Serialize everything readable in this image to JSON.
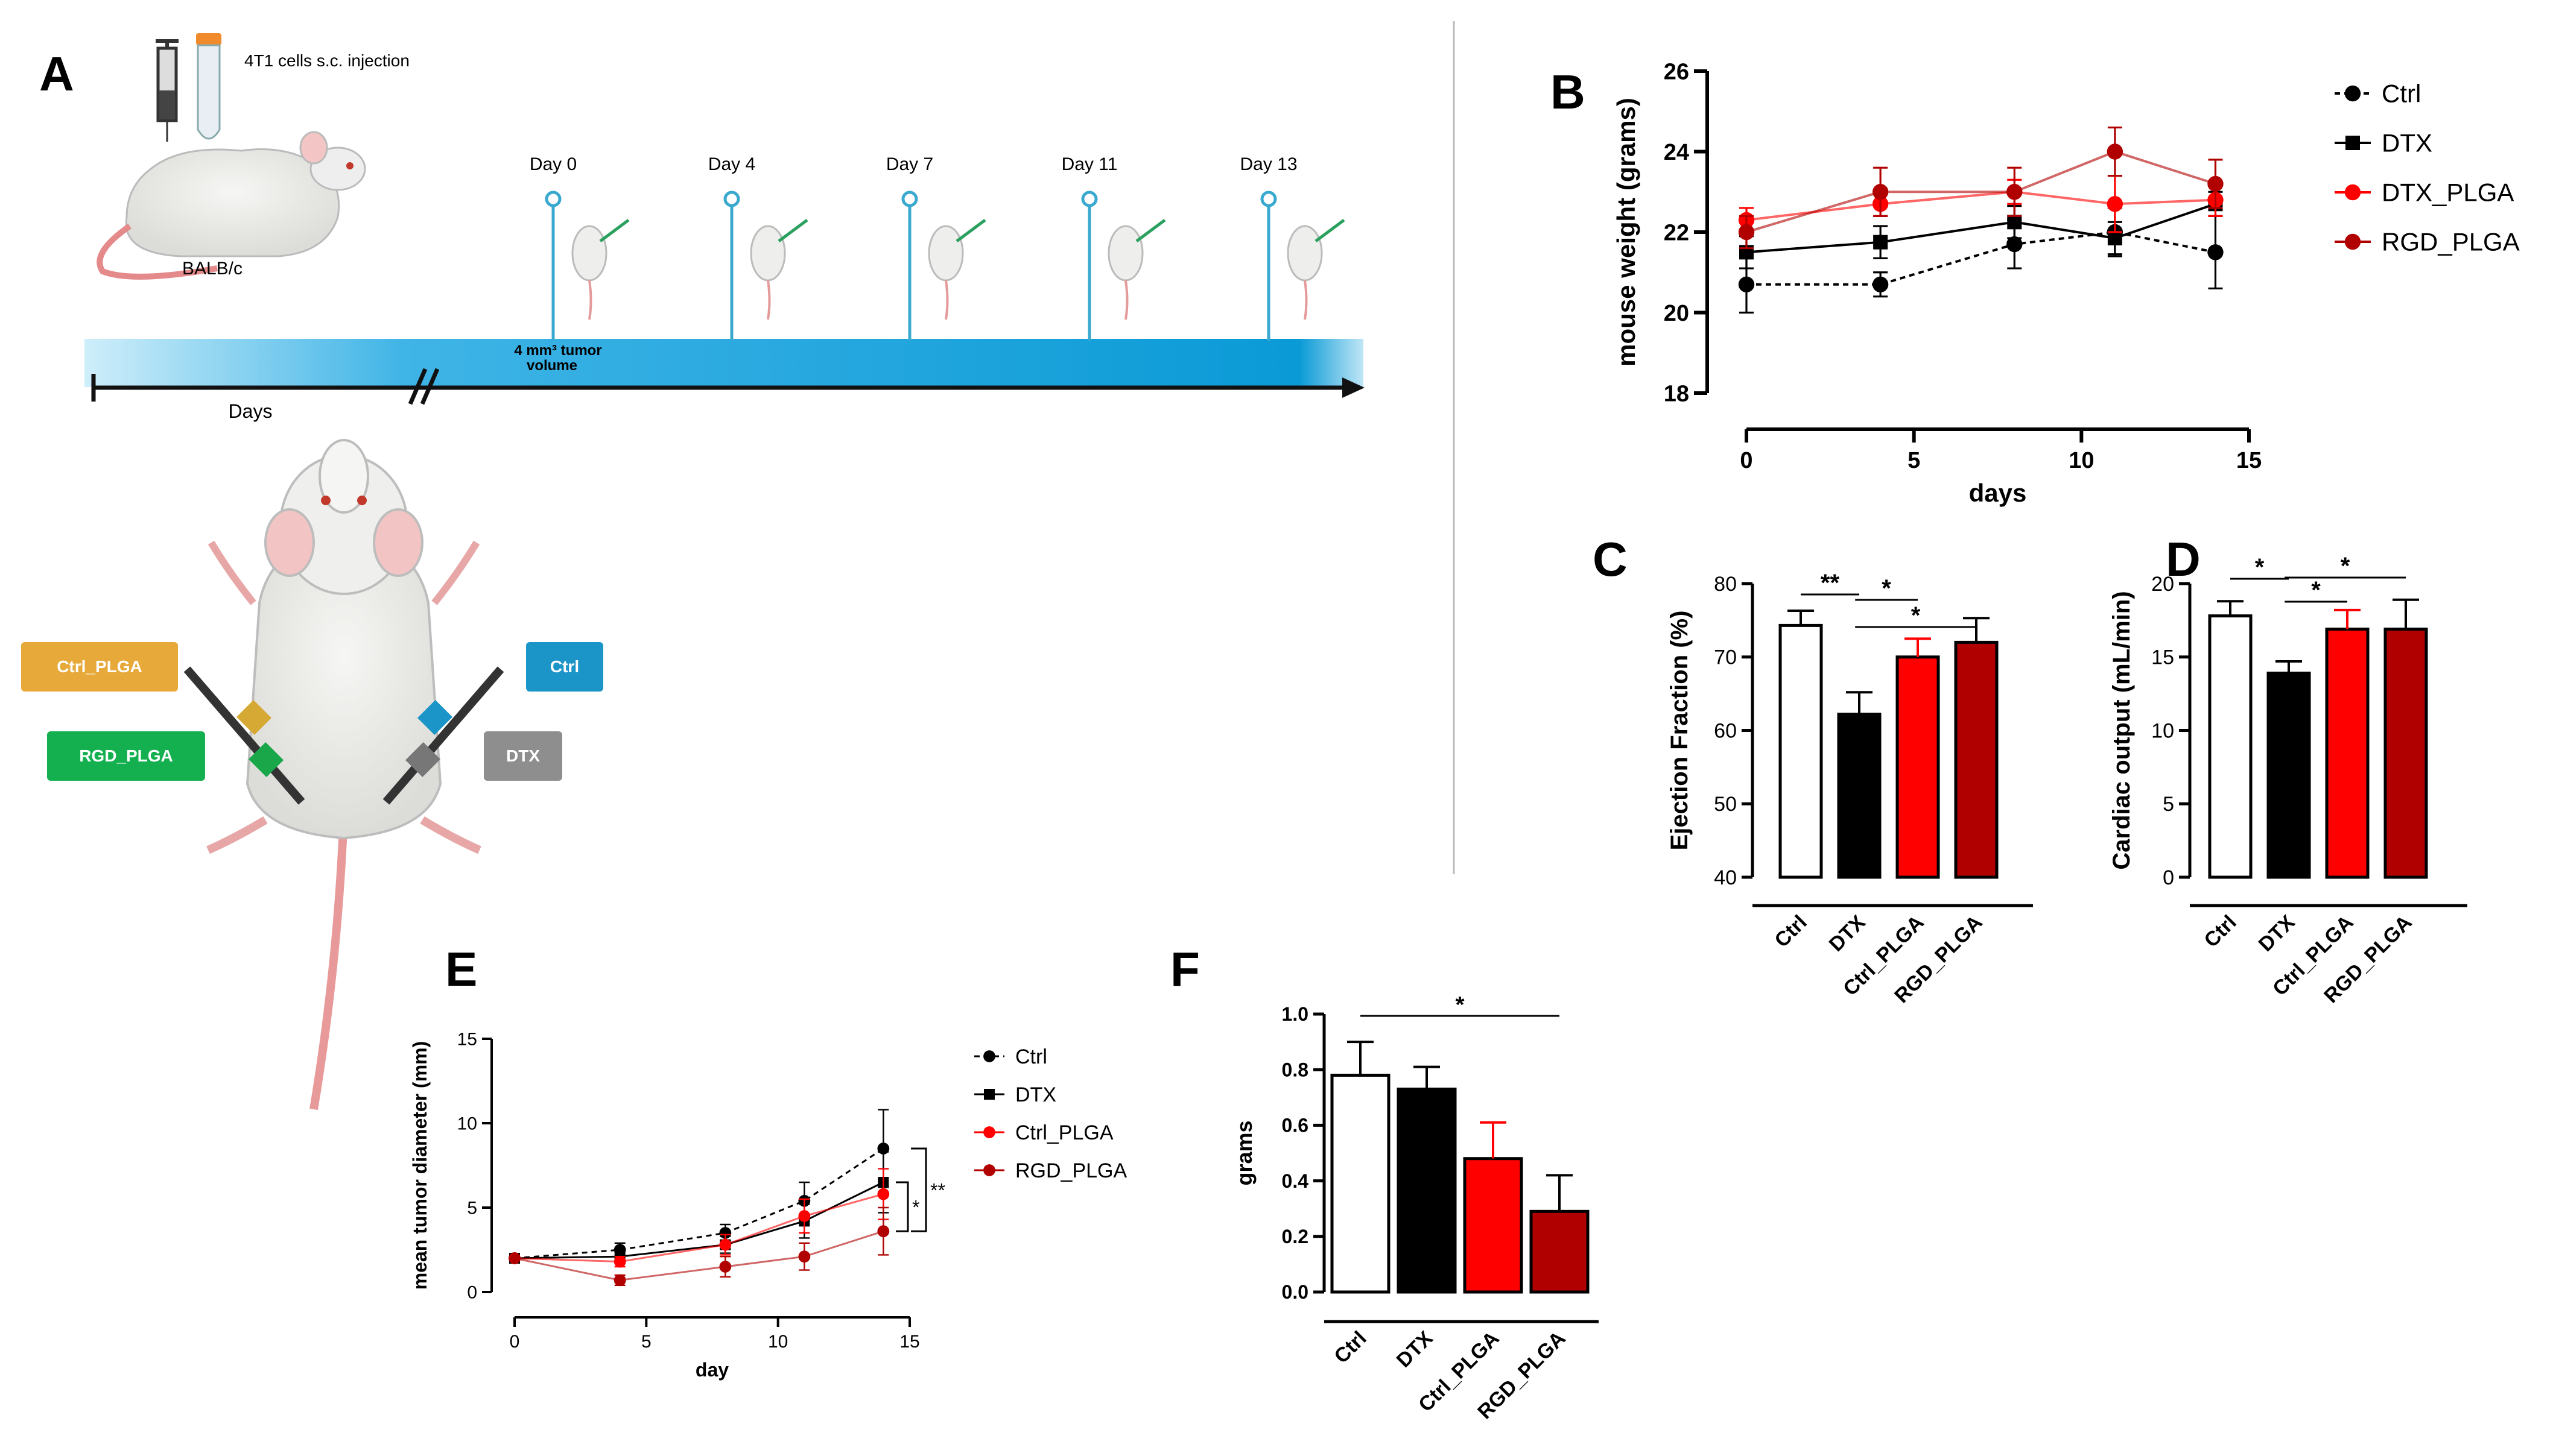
{
  "panels": {
    "A": "A",
    "B": "B",
    "C": "C",
    "D": "D",
    "E": "E",
    "F": "F"
  },
  "colors": {
    "ctrl": "#000000",
    "dtx": "#000000",
    "dtx_plga": "#ff0000",
    "rgd_plga": "#b00000",
    "ctrl_plga": "#ff0000",
    "timeline_bar": "#1aa0d8",
    "ctrl_box": "#1b95c8",
    "dtx_box": "#8e8e8e",
    "ctrl_plga_box": "#e6a93a",
    "rgd_plga_box": "#14b050"
  },
  "schematic": {
    "injection_label": "4T1 cells s.c. injection",
    "strain": "BALB/c",
    "days": [
      "Day 0",
      "Day 4",
      "Day  7",
      "Day 11",
      "Day 13"
    ],
    "tumor_note_1": "4 mm³ tumor",
    "tumor_note_2": "volume",
    "axis_label": "Days",
    "groups": {
      "ctrl_plga": "Ctrl_PLGA",
      "ctrl": "Ctrl",
      "rgd_plga": "RGD_PLGA",
      "dtx": "DTX"
    }
  },
  "chart_data": [
    {
      "id": "B",
      "type": "line",
      "xlabel": "days",
      "ylabel": "mouse weight (grams)",
      "xlim": [
        0,
        15
      ],
      "ylim": [
        18,
        26
      ],
      "xticks": [
        0,
        5,
        10,
        15
      ],
      "yticks": [
        18,
        20,
        22,
        24,
        26
      ],
      "x": [
        0,
        4,
        8,
        11,
        14
      ],
      "series": [
        {
          "name": "Ctrl",
          "values": [
            20.7,
            20.7,
            21.7,
            22.0,
            21.5
          ],
          "errors": [
            0.7,
            0.3,
            0.6,
            0.6,
            0.9
          ],
          "style": "dashed",
          "marker": "circle",
          "color": "#000000"
        },
        {
          "name": "DTX",
          "values": [
            21.5,
            21.75,
            22.25,
            21.85,
            22.7
          ],
          "errors": [
            0.4,
            0.4,
            0.4,
            0.4,
            0.3
          ],
          "style": "solid",
          "marker": "square",
          "color": "#000000"
        },
        {
          "name": "DTX_PLGA",
          "values": [
            22.3,
            22.7,
            23.0,
            22.7,
            22.8
          ],
          "errors": [
            0.3,
            0.3,
            0.3,
            0.7,
            0.4
          ],
          "style": "solid",
          "marker": "circle",
          "color": "#ff0000"
        },
        {
          "name": "RGD_PLGA",
          "values": [
            22.0,
            23.0,
            23.0,
            24.0,
            23.2
          ],
          "errors": [
            0.4,
            0.6,
            0.6,
            0.6,
            0.6
          ],
          "style": "solid",
          "marker": "circle",
          "color": "#b00000"
        }
      ],
      "legend": "right"
    },
    {
      "id": "C",
      "type": "bar",
      "ylabel": "Ejection Fraction (%)",
      "ylim": [
        40,
        80
      ],
      "yticks": [
        40,
        50,
        60,
        70,
        80
      ],
      "categories": [
        "Ctrl",
        "DTX",
        "Ctrl_PLGA",
        "RGD_PLGA"
      ],
      "values": [
        74.3,
        62.2,
        70.0,
        72.0
      ],
      "errors": [
        2.0,
        3.0,
        2.5,
        3.3
      ],
      "significance": [
        {
          "from": 0,
          "to": 1,
          "label": "**"
        },
        {
          "from": 1,
          "to": 2,
          "label": "*"
        },
        {
          "from": 1,
          "to": 3,
          "label": "*"
        }
      ]
    },
    {
      "id": "D",
      "type": "bar",
      "ylabel": "Cardiac output (mL/min)",
      "ylim": [
        0,
        20
      ],
      "yticks": [
        0,
        5,
        10,
        15,
        20
      ],
      "categories": [
        "Ctrl",
        "DTX",
        "Ctrl_PLGA",
        "RGD_PLGA"
      ],
      "values": [
        17.8,
        13.9,
        16.9,
        16.9
      ],
      "errors": [
        1.0,
        0.8,
        1.3,
        2.0
      ],
      "significance": [
        {
          "from": 0,
          "to": 1,
          "label": "*"
        },
        {
          "from": 1,
          "to": 2,
          "label": "*"
        },
        {
          "from": 1,
          "to": 3,
          "label": "*"
        }
      ]
    },
    {
      "id": "E",
      "type": "line",
      "xlabel": "day",
      "ylabel": "mean tumor diameter (mm)",
      "xlim": [
        0,
        15
      ],
      "ylim": [
        0,
        15
      ],
      "xticks": [
        0,
        5,
        10,
        15
      ],
      "yticks": [
        0,
        5,
        10,
        15
      ],
      "x": [
        0,
        4,
        8,
        11,
        14
      ],
      "series": [
        {
          "name": "Ctrl",
          "values": [
            2.0,
            2.5,
            3.5,
            5.4,
            8.5
          ],
          "errors": [
            0.1,
            0.4,
            0.5,
            1.1,
            2.3
          ],
          "style": "dashed",
          "marker": "circle",
          "color": "#000000"
        },
        {
          "name": "DTX",
          "values": [
            2.0,
            2.1,
            2.8,
            4.2,
            6.5
          ],
          "errors": [
            0.1,
            0.4,
            0.5,
            1.0,
            1.8
          ],
          "style": "solid",
          "marker": "square",
          "color": "#000000"
        },
        {
          "name": "Ctrl_PLGA",
          "values": [
            2.0,
            1.8,
            2.8,
            4.5,
            5.8
          ],
          "errors": [
            0.1,
            0.3,
            0.6,
            1.0,
            1.5
          ],
          "style": "solid",
          "marker": "circle",
          "color": "#ff0000"
        },
        {
          "name": "RGD_PLGA",
          "values": [
            2.0,
            0.7,
            1.5,
            2.1,
            3.6
          ],
          "errors": [
            0.1,
            0.3,
            0.6,
            0.8,
            1.4
          ],
          "style": "solid",
          "marker": "circle",
          "color": "#b00000"
        }
      ],
      "significance": [
        {
          "label": "*"
        },
        {
          "label": "**"
        }
      ],
      "legend": "right"
    },
    {
      "id": "F",
      "type": "bar",
      "ylabel": "grams",
      "ylim": [
        0,
        1.0
      ],
      "yticks": [
        "0.0",
        "0.2",
        "0.4",
        "0.6",
        "0.8",
        "1.0"
      ],
      "categories": [
        "Ctrl",
        "DTX",
        "Ctrl_PLGA",
        "RGD_PLGA"
      ],
      "values": [
        0.78,
        0.73,
        0.48,
        0.29
      ],
      "errors": [
        0.12,
        0.08,
        0.13,
        0.13
      ],
      "significance": [
        {
          "from": 0,
          "to": 3,
          "label": "*"
        }
      ]
    }
  ]
}
